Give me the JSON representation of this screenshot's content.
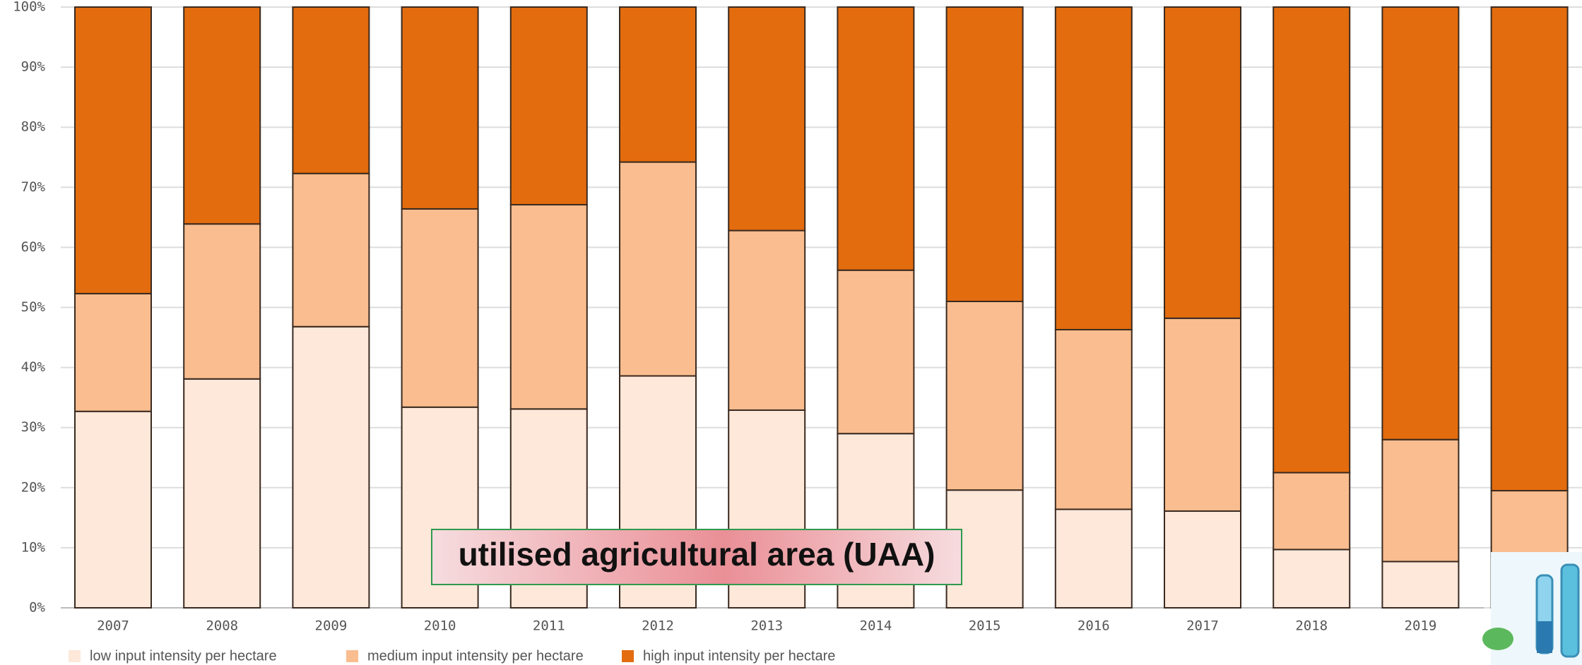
{
  "chart_data": {
    "type": "stacked-bar",
    "categories": [
      "2007",
      "2008",
      "2009",
      "2010",
      "2011",
      "2012",
      "2013",
      "2014",
      "2015",
      "2016",
      "2017",
      "2018",
      "2019",
      null
    ],
    "series": [
      {
        "name": "low input intensity per hectare",
        "color": "#fde8da",
        "values": [
          32.7,
          38.1,
          46.8,
          33.4,
          33.1,
          38.6,
          32.9,
          29.0,
          19.6,
          16.4,
          16.1,
          9.7,
          7.7,
          8.5
        ]
      },
      {
        "name": "medium input intensity per hectare",
        "color": "#f9bd8f",
        "values": [
          19.6,
          25.8,
          25.5,
          33.0,
          34.0,
          35.6,
          29.9,
          27.2,
          31.4,
          29.9,
          32.1,
          12.8,
          20.3,
          11.0
        ]
      },
      {
        "name": "high input intensity per hectare",
        "color": "#e36c0e",
        "values": [
          47.7,
          36.1,
          27.7,
          33.6,
          32.9,
          25.8,
          37.2,
          43.8,
          49.0,
          53.7,
          51.8,
          77.5,
          72.0,
          80.5
        ]
      }
    ],
    "ylim": [
      0,
      100
    ],
    "yticks": [
      {
        "value": 0,
        "label": "0%"
      },
      {
        "value": 10,
        "label": "10%"
      },
      {
        "value": 20,
        "label": "20%"
      },
      {
        "value": 30,
        "label": "30%"
      },
      {
        "value": 40,
        "label": "40%"
      },
      {
        "value": 50,
        "label": "50%"
      },
      {
        "value": 60,
        "label": "60%"
      },
      {
        "value": 70,
        "label": "70%"
      },
      {
        "value": 80,
        "label": "80%"
      },
      {
        "value": 90,
        "label": "90%"
      },
      {
        "value": 100,
        "label": "100%"
      }
    ],
    "grid": true,
    "annotation": "utilised agricultural area (UAA)"
  }
}
